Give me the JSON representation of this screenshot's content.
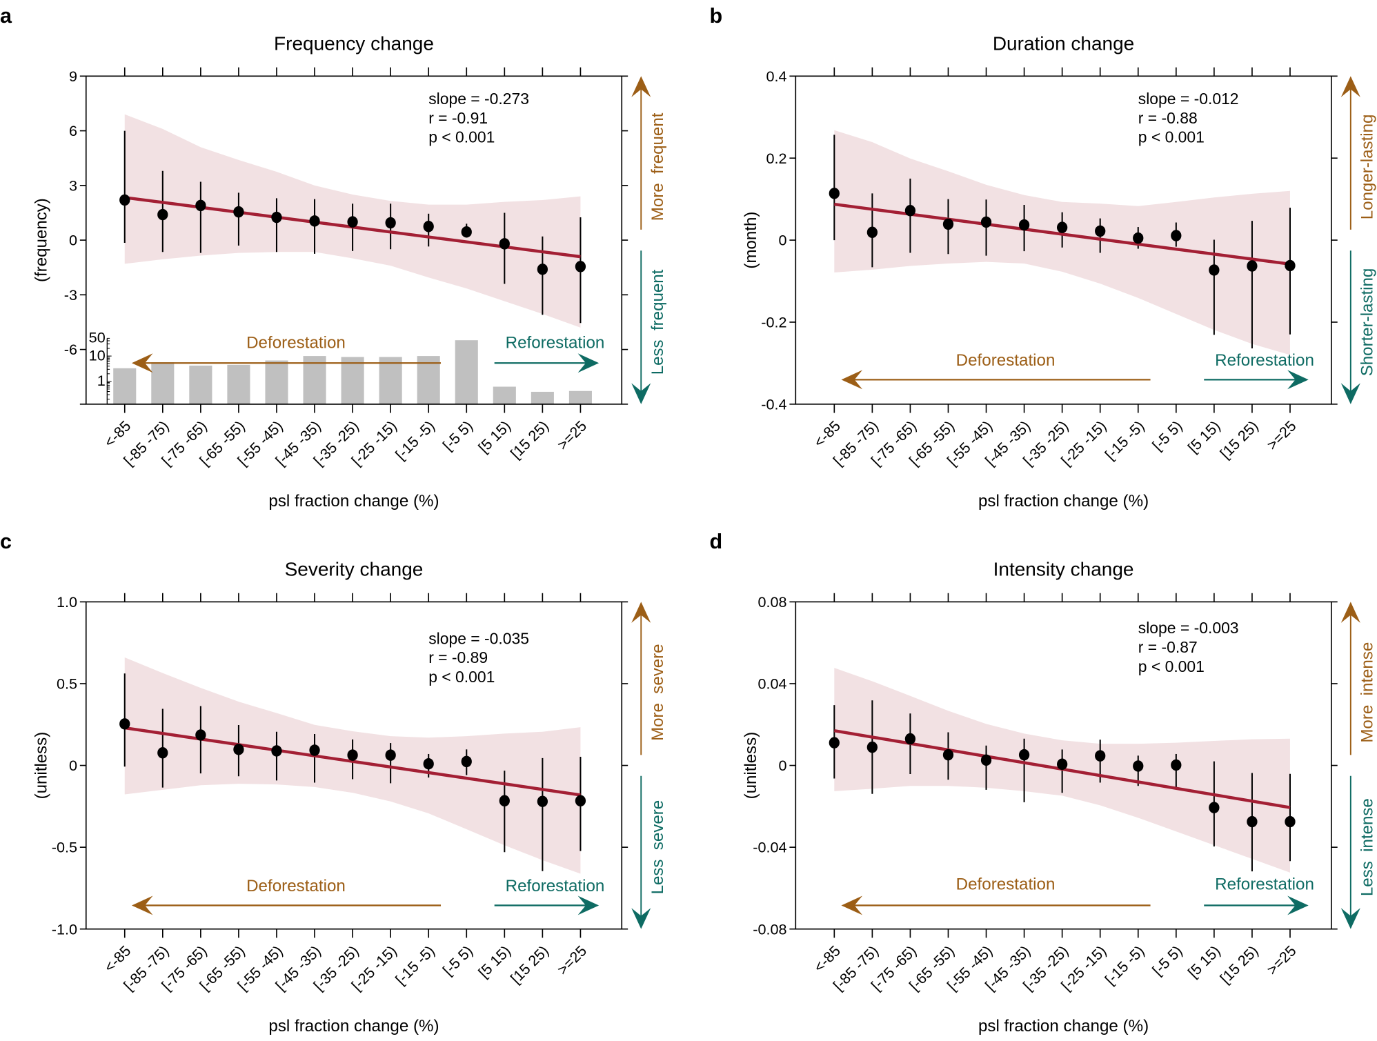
{
  "colors": {
    "fit": "#a31f34",
    "band": "#f2e1e3",
    "points": "#000000",
    "deforestation": "#9c5e16",
    "reforestation": "#0e6b63",
    "inset_bars": "#c0c0c0"
  },
  "chart_data": [
    {
      "panel": "a",
      "type": "scatter",
      "title": "Frequency change",
      "ylabel": "(frequency)",
      "xlabel": "psl fraction change (%)",
      "categories": [
        "<-85",
        "[-85 -75)",
        "[-75 -65)",
        "[-65 -55)",
        "[-55 -45)",
        "[-45 -35)",
        "[-35 -25)",
        "[-25 -15)",
        "[-15 -5)",
        "[-5 5)",
        "[5 15)",
        "[15 25)",
        ">=25"
      ],
      "ylim": [
        -9,
        9
      ],
      "yticks": [
        9,
        6,
        3,
        0,
        -3,
        -6,
        -9
      ],
      "ytick_labels": [
        "9",
        "6",
        "3",
        "0",
        "-3",
        "-6",
        ""
      ],
      "values": [
        2.2,
        1.4,
        1.9,
        1.55,
        1.25,
        1.05,
        1.0,
        0.95,
        0.75,
        0.45,
        -0.2,
        -1.6,
        -1.45
      ],
      "err_high": [
        6.0,
        3.8,
        3.2,
        2.6,
        2.3,
        2.25,
        2.0,
        2.0,
        1.45,
        0.9,
        1.5,
        0.2,
        1.25
      ],
      "err_low": [
        -0.15,
        -0.65,
        -0.7,
        -0.3,
        -0.65,
        -0.75,
        -0.6,
        -0.5,
        -0.35,
        0.35,
        -2.4,
        -4.1,
        -4.55
      ],
      "band_upper": [
        6.9,
        6.1,
        5.1,
        4.4,
        3.75,
        3.0,
        2.5,
        2.15,
        1.95,
        1.95,
        2.1,
        2.2,
        2.4
      ],
      "band_lower": [
        -1.3,
        -1.05,
        -0.85,
        -0.7,
        -0.65,
        -0.65,
        -1.0,
        -1.4,
        -2.05,
        -2.65,
        -3.35,
        -4.05,
        -4.8
      ],
      "fit": [
        2.34,
        -0.91
      ],
      "stats": [
        "slope = -0.273",
        "r = -0.91",
        "p < 0.001"
      ],
      "up_label": "More  frequent",
      "down_label": "Less  frequent",
      "deforestation_label": "Deforestation",
      "reforestation_label": "Reforestation",
      "inset": {
        "type": "bar",
        "yscale": "log",
        "yticks": [
          1,
          10,
          50
        ],
        "ytick_labels": [
          "1",
          "10",
          "50"
        ],
        "values": [
          3.3,
          5.7,
          4.2,
          4.5,
          6.7,
          10,
          9.2,
          9.2,
          10,
          42,
          0.62,
          0.39,
          0.42
        ]
      }
    },
    {
      "panel": "b",
      "type": "scatter",
      "title": "Duration change",
      "ylabel": "(month)",
      "xlabel": "psl fraction change (%)",
      "categories": [
        "<-85",
        "[-85 -75)",
        "[-75 -65)",
        "[-65 -55)",
        "[-55 -45)",
        "[-45 -35)",
        "[-35 -25)",
        "[-25 -15)",
        "[-15 -5)",
        "[-5 5)",
        "[5 15)",
        "[15 25)",
        ">=25"
      ],
      "ylim": [
        -0.4,
        0.4
      ],
      "yticks": [
        0.4,
        0.2,
        0,
        -0.2,
        -0.4
      ],
      "ytick_labels": [
        "0.4",
        "0.2",
        "0",
        "-0.2",
        "-0.4"
      ],
      "values": [
        0.114,
        0.019,
        0.072,
        0.039,
        0.044,
        0.037,
        0.031,
        0.022,
        0.005,
        0.011,
        -0.073,
        -0.063,
        -0.062
      ],
      "err_high": [
        0.257,
        0.114,
        0.15,
        0.1,
        0.099,
        0.086,
        0.068,
        0.053,
        0.032,
        0.043,
        0.001,
        0.047,
        0.079
      ],
      "err_low": [
        0.0,
        -0.066,
        -0.031,
        -0.034,
        -0.038,
        -0.027,
        -0.018,
        -0.031,
        -0.021,
        -0.016,
        -0.231,
        -0.264,
        -0.23
      ],
      "band_upper": [
        0.268,
        0.239,
        0.199,
        0.168,
        0.135,
        0.11,
        0.093,
        0.089,
        0.083,
        0.093,
        0.104,
        0.113,
        0.12
      ],
      "band_lower": [
        -0.079,
        -0.072,
        -0.063,
        -0.057,
        -0.053,
        -0.057,
        -0.077,
        -0.106,
        -0.141,
        -0.18,
        -0.219,
        -0.253,
        -0.28
      ],
      "fit": [
        0.0875,
        -0.0585
      ],
      "stats": [
        "slope = -0.012",
        "r = -0.88",
        "p < 0.001"
      ],
      "up_label": "Longer-lasting",
      "down_label": "Shorter-lasting",
      "deforestation_label": "Deforestation",
      "reforestation_label": "Reforestation"
    },
    {
      "panel": "c",
      "type": "scatter",
      "title": "Severity change",
      "ylabel": "(unitless)",
      "xlabel": "psl fraction change (%)",
      "categories": [
        "<-85",
        "[-85 -75)",
        "[-75 -65)",
        "[-65 -55)",
        "[-55 -45)",
        "[-45 -35)",
        "[-35 -25)",
        "[-25 -15)",
        "[-15 -5)",
        "[-5 5)",
        "[5 15)",
        "[15 25)",
        ">=25"
      ],
      "ylim": [
        -1.0,
        1.0
      ],
      "yticks": [
        1.0,
        0.5,
        0,
        -0.5,
        -1.0
      ],
      "ytick_labels": [
        "1.0",
        "0.5",
        "0",
        "-0.5",
        "-1.0"
      ],
      "values": [
        0.254,
        0.077,
        0.186,
        0.098,
        0.089,
        0.093,
        0.063,
        0.063,
        0.01,
        0.024,
        -0.216,
        -0.22,
        -0.216
      ],
      "err_high": [
        0.562,
        0.346,
        0.363,
        0.247,
        0.206,
        0.192,
        0.159,
        0.137,
        0.07,
        0.098,
        -0.032,
        0.045,
        0.053
      ],
      "err_low": [
        -0.007,
        -0.135,
        -0.049,
        -0.066,
        -0.092,
        -0.105,
        -0.084,
        -0.109,
        -0.074,
        -0.059,
        -0.53,
        -0.646,
        -0.523
      ],
      "band_upper": [
        0.66,
        0.565,
        0.474,
        0.39,
        0.32,
        0.248,
        0.209,
        0.179,
        0.17,
        0.179,
        0.195,
        0.206,
        0.234
      ],
      "band_lower": [
        -0.177,
        -0.149,
        -0.121,
        -0.112,
        -0.116,
        -0.132,
        -0.167,
        -0.22,
        -0.293,
        -0.39,
        -0.488,
        -0.579,
        -0.662
      ],
      "fit": [
        0.23,
        -0.181
      ],
      "stats": [
        "slope = -0.035",
        "r = -0.89",
        "p < 0.001"
      ],
      "up_label": "More  severe",
      "down_label": "Less  severe",
      "deforestation_label": "Deforestation",
      "reforestation_label": "Reforestation"
    },
    {
      "panel": "d",
      "type": "scatter",
      "title": "Intensity change",
      "ylabel": "(unitless)",
      "xlabel": "psl fraction change (%)",
      "categories": [
        "<-85",
        "[-85 -75)",
        "[-75 -65)",
        "[-65 -55)",
        "[-55 -45)",
        "[-45 -35)",
        "[-35 -25)",
        "[-25 -15)",
        "[-15 -5)",
        "[-5 5)",
        "[5 15)",
        "[15 25)",
        ">=25"
      ],
      "ylim": [
        -0.08,
        0.08
      ],
      "yticks": [
        0.08,
        0.04,
        0,
        -0.04,
        -0.08
      ],
      "ytick_labels": [
        "0.08",
        "0.04",
        "0",
        "-0.04",
        "-0.08"
      ],
      "values": [
        0.0111,
        0.0089,
        0.013,
        0.0052,
        0.0026,
        0.0052,
        0.0006,
        0.0047,
        -0.0003,
        0.0002,
        -0.0206,
        -0.0275,
        -0.0275
      ],
      "err_high": [
        0.0295,
        0.0318,
        0.0254,
        0.0162,
        0.0097,
        0.0131,
        0.0078,
        0.0126,
        0.0048,
        0.0056,
        0.002,
        -0.0037,
        -0.0041
      ],
      "err_low": [
        -0.0064,
        -0.0139,
        -0.0042,
        -0.007,
        -0.0119,
        -0.018,
        -0.0134,
        -0.0084,
        -0.01,
        -0.0106,
        -0.0396,
        -0.0518,
        -0.0468
      ],
      "band_upper": [
        0.0477,
        0.0412,
        0.034,
        0.0267,
        0.0203,
        0.0156,
        0.0123,
        0.0106,
        0.0106,
        0.0111,
        0.012,
        0.0128,
        0.0131
      ],
      "band_lower": [
        -0.0126,
        -0.0114,
        -0.01,
        -0.01,
        -0.0109,
        -0.0126,
        -0.0148,
        -0.0195,
        -0.0256,
        -0.0323,
        -0.039,
        -0.0457,
        -0.0524
      ],
      "fit": [
        0.017,
        -0.0206
      ],
      "stats": [
        "slope = -0.003",
        "r = -0.87",
        "p < 0.001"
      ],
      "up_label": "More  intense",
      "down_label": "Less  intense",
      "deforestation_label": "Deforestation",
      "reforestation_label": "Reforestation"
    }
  ]
}
